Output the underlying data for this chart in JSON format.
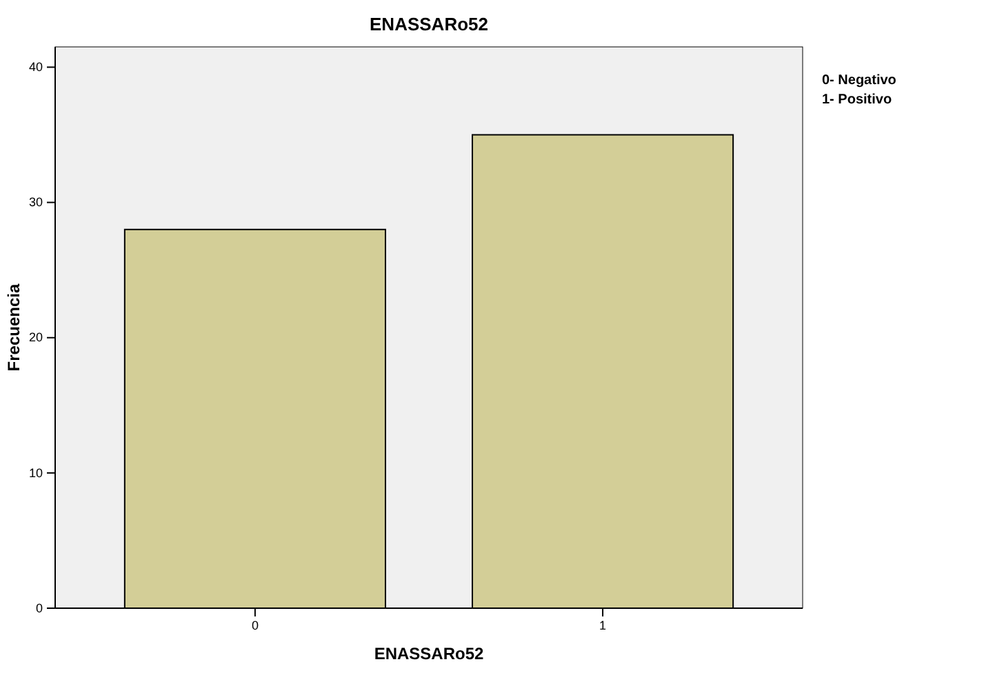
{
  "chart_data": {
    "type": "bar",
    "title": "ENASSARo52",
    "xlabel": "ENASSARo52",
    "ylabel": "Frecuencia",
    "categories": [
      "0",
      "1"
    ],
    "values": [
      28,
      35
    ],
    "color": "#d3ce97",
    "ylim": [
      0,
      41.5
    ],
    "yticks": [
      0,
      10,
      20,
      30,
      40
    ],
    "grid": false,
    "annotations": [
      "0- Negativo",
      "1- Positivo"
    ]
  }
}
